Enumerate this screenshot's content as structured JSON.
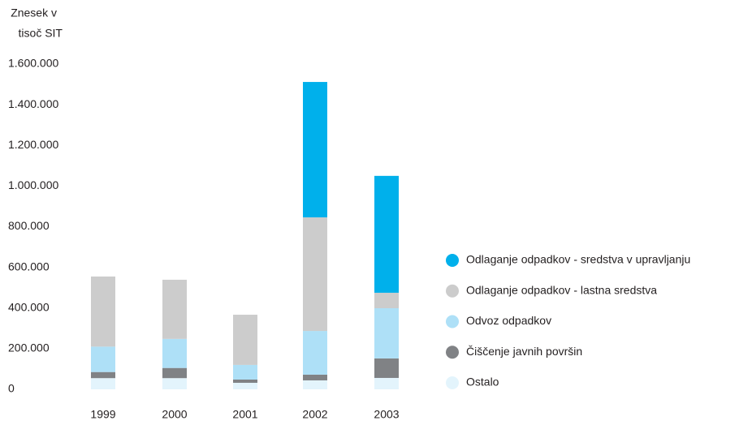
{
  "chart_data": {
    "type": "bar",
    "stacked": true,
    "y_label": [
      "Znesek v",
      "tisoč SIT"
    ],
    "categories": [
      "1999",
      "2000",
      "2001",
      "2002",
      "2003"
    ],
    "series": [
      {
        "name": "Ostalo",
        "color": "#e3f4fc",
        "values": [
          55000,
          55000,
          32000,
          44000,
          56000
        ]
      },
      {
        "name": "Čiščenje javnih površin",
        "color": "#808285",
        "values": [
          30000,
          50000,
          16000,
          28000,
          96000
        ]
      },
      {
        "name": "Odvoz odpadkov",
        "color": "#aee0f7",
        "values": [
          125000,
          143000,
          72000,
          215000,
          247000
        ]
      },
      {
        "name": "Odlaganje odpadkov - lastna sredstva",
        "color": "#cccccc",
        "values": [
          345000,
          291000,
          247000,
          559000,
          76000
        ]
      },
      {
        "name": "Odlaganje odpadkov - sredstva v upravljanju",
        "color": "#00b0eb",
        "values": [
          0,
          0,
          0,
          666000,
          575000
        ]
      }
    ],
    "ylim": [
      0,
      1600000
    ],
    "yticks": [
      0,
      {
        "value": 200000,
        "label": "200.000"
      },
      {
        "value": 400000,
        "label": "400.000"
      },
      {
        "value": 600000,
        "label": "600.000"
      },
      {
        "value": 800000,
        "label": "800.000"
      },
      {
        "value": 1000000,
        "label": "1.000.000"
      },
      {
        "value": 1200000,
        "label": "1.200.000"
      },
      {
        "value": 1400000,
        "label": "1.400.000"
      },
      {
        "value": 1600000,
        "label": "1.600.000"
      }
    ],
    "grid": false,
    "legend": "right"
  }
}
